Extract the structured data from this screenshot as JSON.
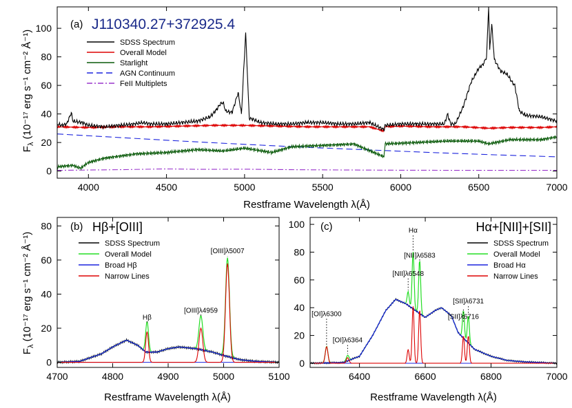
{
  "chart_data": [
    {
      "panel": "a",
      "type": "line",
      "panel_label": "(a)",
      "object_name": "J110340.27+372925.4",
      "xlabel": "Restframe Wavelength λ(Å)",
      "ylabel": "F",
      "ylabel_subscript": "λ",
      "ylabel_units": " (10⁻¹⁷ erg s⁻¹ cm⁻² Å⁻¹)",
      "xlim": [
        3800,
        7000
      ],
      "ylim": [
        -5,
        115
      ],
      "xticks": [
        4000,
        4500,
        5000,
        5500,
        6000,
        6500,
        7000
      ],
      "yticks": [
        0,
        20,
        40,
        60,
        80,
        100
      ],
      "legend_position": "upper-left",
      "series": [
        {
          "name": "SDSS Spectrum",
          "color": "#000000",
          "dash": "solid",
          "key": "spectrum",
          "x": [
            3800,
            3830,
            3860,
            3880,
            3890,
            3900,
            3960,
            4000,
            4100,
            4200,
            4300,
            4340,
            4400,
            4500,
            4600,
            4700,
            4780,
            4820,
            4845,
            4862,
            4880,
            4920,
            4959,
            4980,
            5007,
            5030,
            5060,
            5100,
            5200,
            5300,
            5400,
            5500,
            5600,
            5700,
            5800,
            5893,
            5900,
            6000,
            6100,
            6200,
            6280,
            6300,
            6320,
            6350,
            6400,
            6450,
            6500,
            6530,
            6550,
            6563,
            6570,
            6583,
            6600,
            6640,
            6680,
            6716,
            6731,
            6760,
            6800,
            6900,
            7000
          ],
          "y": [
            33,
            32,
            33,
            38,
            41,
            35,
            34,
            32,
            31,
            32,
            33,
            34,
            33,
            33,
            34,
            35,
            38,
            43,
            47,
            48,
            42,
            41,
            55,
            40,
            97,
            37,
            36,
            34,
            33,
            33,
            34,
            34,
            33,
            33,
            34,
            29,
            32,
            33,
            33,
            33,
            33,
            40,
            33,
            33,
            45,
            62,
            72,
            75,
            80,
            115,
            85,
            103,
            78,
            70,
            68,
            62,
            60,
            42,
            39,
            38,
            35
          ]
        },
        {
          "name": "Overall Model",
          "color": "#dd0000",
          "dash": "solid",
          "key": "model",
          "x": [
            3800,
            4000,
            4200,
            4400,
            4600,
            4800,
            5000,
            5200,
            5400,
            5600,
            5800,
            5893,
            5900,
            6000,
            6200,
            6400,
            6563,
            6700,
            6900,
            7000
          ],
          "y": [
            31,
            30.5,
            31,
            31,
            31.5,
            32,
            32,
            31.5,
            31,
            31,
            31,
            28,
            31,
            31.5,
            31,
            31,
            30,
            30.5,
            30.5,
            31
          ]
        },
        {
          "name": "Starlight",
          "color": "#0a5a0a",
          "dash": "solid",
          "key": "starlight",
          "x": [
            3800,
            3900,
            3950,
            4000,
            4100,
            4300,
            4500,
            4700,
            4861,
            5000,
            5175,
            5300,
            5500,
            5700,
            5893,
            5900,
            6100,
            6300,
            6500,
            6563,
            6700,
            6900,
            7000
          ],
          "y": [
            3,
            4,
            2,
            6,
            9,
            12,
            13,
            15,
            14,
            16,
            13,
            17,
            18,
            19,
            10,
            19,
            20,
            21,
            21,
            19,
            22,
            22,
            24
          ]
        },
        {
          "name": "AGN Continuum",
          "color": "#1a22dd",
          "dash": "dashed",
          "key": "agn",
          "x": [
            3800,
            4200,
            4600,
            5000,
            5400,
            5800,
            6200,
            6600,
            7000
          ],
          "y": [
            26,
            23.5,
            21,
            18.7,
            16.6,
            14.8,
            13,
            11.4,
            10
          ]
        },
        {
          "name": "FeII Multiplets",
          "color": "#9933cc",
          "dash": "dashdot",
          "key": "feii",
          "x": [
            3800,
            4200,
            4500,
            4700,
            5000,
            5300,
            5600,
            6000,
            6500,
            7000
          ],
          "y": [
            0.5,
            1,
            1.5,
            1.2,
            1.3,
            1.0,
            0.8,
            0.6,
            0.5,
            0.5
          ]
        }
      ]
    },
    {
      "panel": "b",
      "type": "line",
      "panel_label": "(b)",
      "panel_title": "Hβ+[OIII]",
      "xlabel": "Restframe Wavelength λ(Å)",
      "ylabel": "F",
      "ylabel_subscript": "λ",
      "ylabel_units": " (10⁻¹⁷ erg s⁻¹ cm⁻² Å⁻¹)",
      "xlim": [
        4700,
        5100
      ],
      "ylim": [
        -3,
        85
      ],
      "xticks": [
        4700,
        4800,
        4900,
        5000,
        5100
      ],
      "yticks": [
        0,
        20,
        40,
        60,
        80
      ],
      "legend_position": "upper-left",
      "legend": [
        {
          "name": "SDSS Spectrum",
          "color": "#000000"
        },
        {
          "name": "Overall Model",
          "color": "#22dd22"
        },
        {
          "name": "Broad Hβ",
          "color": "#1a22dd"
        },
        {
          "name": "Narrow Lines",
          "color": "#dd0000"
        }
      ],
      "broad_component": {
        "x": [
          4700,
          4740,
          4780,
          4800,
          4825,
          4845,
          4860,
          4880,
          4900,
          4920,
          4950,
          4980,
          5000,
          5030,
          5060,
          5100
        ],
        "y": [
          0,
          0.5,
          5,
          9,
          13,
          10,
          6,
          6,
          8,
          9,
          8,
          6,
          4,
          1.5,
          0.5,
          0
        ]
      },
      "narrow_lines": [
        {
          "center": 4862,
          "amp": 18,
          "sigma": 2.6
        },
        {
          "center": 4959,
          "amp": 20,
          "sigma": 3.5
        },
        {
          "center": 5007,
          "amp": 58,
          "sigma": 3.5
        }
      ],
      "annotations": [
        {
          "text": "Hβ",
          "x": 4862,
          "y": 25
        },
        {
          "text": "[OIII]λ4959",
          "x": 4959,
          "y": 29
        },
        {
          "text": "[OIII]λ5007",
          "x": 5007,
          "y": 64
        }
      ]
    },
    {
      "panel": "c",
      "type": "line",
      "panel_label": "(c)",
      "panel_title": "Hα+[NII]+[SII]",
      "xlabel": "Restframe Wavelength λ(Å)",
      "xlim": [
        6250,
        7000
      ],
      "ylim": [
        -3,
        105
      ],
      "xticks": [
        6400,
        6600,
        6800,
        7000
      ],
      "yticks": [
        0,
        20,
        40,
        60,
        80,
        100
      ],
      "legend_position": "upper-right",
      "legend": [
        {
          "name": "SDSS Spectrum",
          "color": "#000000"
        },
        {
          "name": "Overall Model",
          "color": "#22dd22"
        },
        {
          "name": "Broad Hα",
          "color": "#1a22dd"
        },
        {
          "name": "Narrow Lines",
          "color": "#dd0000"
        }
      ],
      "broad_component": {
        "x": [
          6250,
          6350,
          6400,
          6440,
          6480,
          6510,
          6540,
          6570,
          6600,
          6630,
          6650,
          6680,
          6700,
          6750,
          6800,
          6850,
          6900,
          6950,
          7000
        ],
        "y": [
          0,
          0.5,
          5,
          20,
          38,
          46,
          43,
          38,
          33,
          38,
          40,
          34,
          22,
          10,
          5,
          2,
          1,
          0.5,
          0
        ]
      },
      "narrow_lines": [
        {
          "center": 6300,
          "amp": 12,
          "sigma": 4
        },
        {
          "center": 6364,
          "amp": 4,
          "sigma": 4
        },
        {
          "center": 6548,
          "amp": 10,
          "sigma": 3
        },
        {
          "center": 6563,
          "amp": 41,
          "sigma": 3
        },
        {
          "center": 6583,
          "amp": 39,
          "sigma": 3
        },
        {
          "center": 6716,
          "amp": 20,
          "sigma": 3
        },
        {
          "center": 6731,
          "amp": 20,
          "sigma": 3
        }
      ],
      "annotations": [
        {
          "text": "[OI]λ6300",
          "x": 6300,
          "y": 34
        },
        {
          "text": "[OI]λ6364",
          "x": 6364,
          "y": 15
        },
        {
          "text": "[NII]λ6548",
          "x": 6548,
          "y": 63
        },
        {
          "text": "Hα",
          "x": 6563,
          "y": 94
        },
        {
          "text": "[NII]λ6583",
          "x": 6583,
          "y": 76
        },
        {
          "text": "[SII]λ6716",
          "x": 6716,
          "y": 32
        },
        {
          "text": "[SII]λ6731",
          "x": 6731,
          "y": 43
        }
      ]
    }
  ]
}
